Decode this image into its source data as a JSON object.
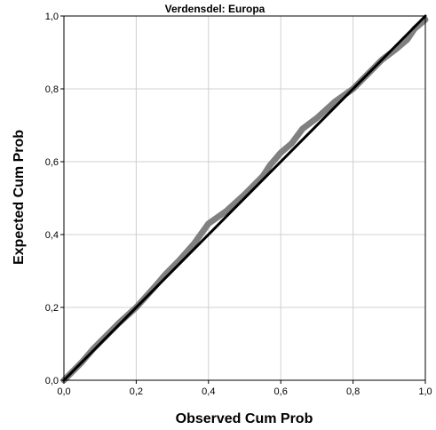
{
  "chart_data": {
    "type": "line",
    "title": "Verdensdel: Europa",
    "xlabel": "Observed Cum Prob",
    "ylabel": "Expected Cum Prob",
    "xlim": [
      0,
      1
    ],
    "ylim": [
      0,
      1
    ],
    "x_ticks": [
      "0,0",
      "0,2",
      "0,4",
      "0,6",
      "0,8",
      "1,0"
    ],
    "y_ticks": [
      "0,0",
      "0,2",
      "0,4",
      "0,6",
      "0,8",
      "1,0"
    ],
    "grid": true,
    "series": [
      {
        "style": "thick-gray",
        "color": "#808080",
        "x": [
          0.0,
          0.02,
          0.05,
          0.08,
          0.12,
          0.15,
          0.2,
          0.25,
          0.28,
          0.32,
          0.36,
          0.4,
          0.45,
          0.5,
          0.55,
          0.57,
          0.6,
          0.63,
          0.66,
          0.7,
          0.75,
          0.8,
          0.84,
          0.88,
          0.92,
          0.95,
          0.97,
          1.0
        ],
        "y": [
          0.0,
          0.02,
          0.05,
          0.085,
          0.125,
          0.155,
          0.2,
          0.255,
          0.29,
          0.33,
          0.375,
          0.43,
          0.465,
          0.51,
          0.56,
          0.59,
          0.625,
          0.65,
          0.69,
          0.72,
          0.765,
          0.8,
          0.84,
          0.88,
          0.91,
          0.935,
          0.965,
          0.99
        ]
      },
      {
        "style": "reference-line",
        "color": "#000000",
        "x": [
          0.0,
          1.0
        ],
        "y": [
          0.0,
          1.0
        ]
      }
    ]
  }
}
